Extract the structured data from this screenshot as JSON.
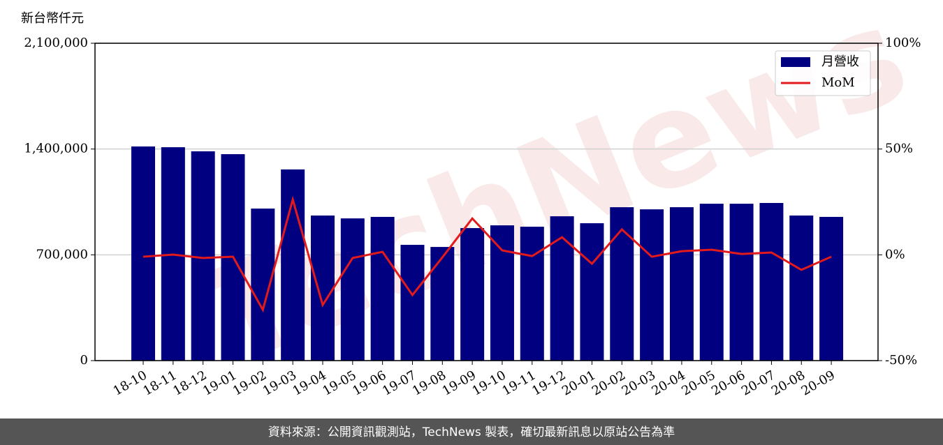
{
  "chart_data": {
    "type": "bar",
    "y_label": "新台幣仟元",
    "watermark": "TechNews",
    "footer": "資料來源：公開資訊觀測站，TechNews 製表，確切最新訊息以原站公告為準",
    "categories": [
      "18-10",
      "18-11",
      "18-12",
      "19-01",
      "19-02",
      "19-03",
      "19-04",
      "19-05",
      "19-06",
      "19-07",
      "19-08",
      "19-09",
      "19-10",
      "19-11",
      "19-12",
      "20-01",
      "20-02",
      "20-03",
      "20-04",
      "20-05",
      "20-06",
      "20-07",
      "20-08",
      "20-09"
    ],
    "series": [
      {
        "name": "月營收",
        "type": "bar",
        "axis": "y",
        "color": "#000080",
        "values": [
          1417000,
          1412000,
          1385000,
          1366000,
          1006000,
          1265000,
          960000,
          941000,
          951000,
          766000,
          752000,
          877000,
          895000,
          886000,
          955000,
          909000,
          1015000,
          1001000,
          1015000,
          1038000,
          1038000,
          1043000,
          960000,
          951000
        ]
      },
      {
        "name": "MoM",
        "type": "line",
        "axis": "y2",
        "color": "#e31a1c",
        "values": [
          -0.9,
          0.1,
          -1.5,
          -0.9,
          -26.0,
          26.1,
          -23.7,
          -1.5,
          1.4,
          -19.0,
          -1.2,
          17.2,
          2.1,
          -0.6,
          8.3,
          -4.2,
          12.0,
          -0.9,
          1.7,
          2.4,
          0.4,
          1.1,
          -7.1,
          -0.9
        ]
      }
    ],
    "ylim": [
      0,
      2100000
    ],
    "yticks": [
      0,
      {
        "value": 700000,
        "label": "700,000"
      },
      {
        "value": 1400000,
        "label": "1,400,000"
      },
      {
        "value": 2100000,
        "label": "2,100,000"
      }
    ],
    "y2lim": [
      -50,
      100
    ],
    "y2ticks": [
      {
        "value": -50,
        "label": "-50%"
      },
      {
        "value": 0,
        "label": "0%"
      },
      {
        "value": 50,
        "label": "50%"
      },
      {
        "value": 100,
        "label": "100%"
      }
    ],
    "grid": true,
    "legend": "upper right"
  }
}
